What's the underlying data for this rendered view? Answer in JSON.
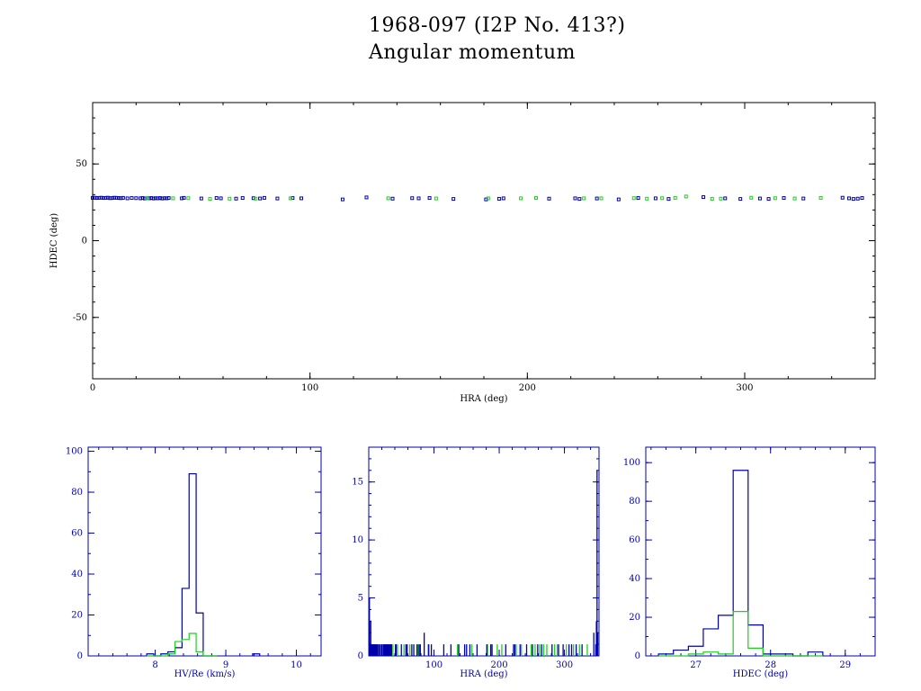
{
  "header": {
    "title": "1968-097 (I2P No. 413?)",
    "subtitle": "Angular momentum"
  },
  "colors": {
    "axis": "#000000",
    "primary": "#0000aa",
    "secondary": "#22cc22",
    "hist_axis": "#0000aa"
  },
  "chart_data": [
    {
      "type": "scatter",
      "xlabel": "HRA (deg)",
      "ylabel": "HDEC (deg)",
      "xlim": [
        0,
        360
      ],
      "ylim": [
        -90,
        90
      ],
      "xticks": [
        0,
        100,
        200,
        300
      ],
      "yticks": [
        -50,
        0,
        50
      ],
      "series": [
        {
          "color": "#0000aa",
          "x": [
            0,
            1,
            2,
            3,
            4,
            5,
            6,
            7,
            8,
            9,
            10,
            11,
            12,
            13,
            14,
            16,
            18,
            20,
            22,
            23,
            24,
            25,
            26,
            27,
            28,
            29,
            30,
            31,
            32,
            33,
            34,
            35,
            41,
            42,
            50,
            57,
            59,
            66,
            69,
            74,
            77,
            79,
            85,
            92,
            96,
            115,
            126,
            138,
            147,
            150,
            155,
            166,
            181,
            187,
            189,
            210,
            222,
            224,
            232,
            242,
            251,
            259,
            265,
            281,
            291,
            298,
            307,
            311,
            318,
            327,
            345,
            348,
            350,
            352,
            354
          ],
          "y": [
            27.9,
            28,
            27.8,
            27.9,
            28,
            27.8,
            27.9,
            28,
            27.7,
            27.8,
            28,
            27.9,
            27.8,
            27.7,
            27.9,
            27.6,
            27.8,
            27.7,
            27.6,
            27.8,
            27.5,
            27.7,
            27.6,
            27.8,
            27.5,
            27.7,
            27.6,
            27.8,
            27.5,
            27.7,
            27.6,
            27.8,
            27.6,
            27.9,
            27.5,
            27.8,
            27.6,
            27.4,
            27.8,
            27.7,
            27.5,
            27.9,
            27.5,
            27.8,
            27.6,
            26.9,
            28.2,
            27.4,
            27.7,
            27.6,
            27.8,
            27.2,
            26.9,
            27.3,
            27.6,
            27.4,
            27.6,
            27.2,
            27.5,
            26.9,
            27.8,
            27.6,
            27.2,
            28.4,
            27.6,
            27.2,
            27.5,
            27.2,
            27.8,
            27.5,
            28,
            27.6,
            27.2,
            27.4,
            27.8
          ]
        },
        {
          "color": "#22cc22",
          "x": [
            25,
            37,
            44,
            54,
            63,
            75,
            91,
            136,
            158,
            182,
            197,
            204,
            226,
            234,
            249,
            255,
            262,
            268,
            273,
            285,
            289,
            303,
            314,
            323,
            335
          ],
          "y": [
            27.6,
            27.6,
            27.7,
            27.2,
            27.4,
            27.4,
            27.6,
            27.6,
            27.5,
            27.6,
            27.6,
            27.8,
            27.6,
            27.6,
            27.7,
            27.4,
            27.7,
            27.9,
            28.8,
            27.3,
            27.4,
            28,
            27.7,
            27.5,
            27.9
          ]
        }
      ]
    },
    {
      "type": "histogram",
      "xlabel": "HV/Re (km/s)",
      "xlim": [
        7.05,
        10.35
      ],
      "ylim": [
        0,
        102
      ],
      "xticks": [
        8,
        9,
        10
      ],
      "yticks": [
        0,
        20,
        40,
        60,
        80,
        100
      ],
      "bin_edges": [
        7.88,
        7.98,
        8.08,
        8.18,
        8.28,
        8.38,
        8.48,
        8.58,
        8.68,
        8.78,
        8.88
      ],
      "series": [
        {
          "color": "#0000aa",
          "counts": [
            1,
            0,
            1,
            2,
            4,
            33,
            89,
            21,
            0,
            0
          ]
        },
        {
          "color": "#22cc22",
          "counts": [
            0,
            0,
            0,
            1,
            7,
            8,
            11,
            2,
            0,
            0
          ]
        }
      ],
      "extra_bins": [
        {
          "edges": [
            9.38,
            9.48
          ],
          "count": 1,
          "color": "#0000aa"
        }
      ]
    },
    {
      "type": "histogram",
      "xlabel": "HRA (deg)",
      "xlim": [
        0,
        353
      ],
      "ylim": [
        0,
        18
      ],
      "xticks": [
        100,
        200,
        300
      ],
      "yticks": [
        0,
        5,
        10,
        15
      ],
      "spikes": {
        "blue_x": [
          0.5,
          1,
          2,
          3,
          4,
          5,
          6,
          7,
          8,
          9,
          10,
          11,
          12,
          13,
          14,
          16,
          18,
          20,
          22,
          23,
          24,
          25,
          26,
          27,
          28,
          29,
          30,
          31,
          32,
          33,
          34,
          35,
          41,
          42,
          50,
          57,
          59,
          66,
          69,
          74,
          77,
          79,
          85,
          92,
          96,
          115,
          126,
          138,
          147,
          150,
          155,
          166,
          181,
          187,
          189,
          210,
          222,
          224,
          232,
          242,
          251,
          259,
          265,
          281,
          291,
          298,
          307,
          311,
          318,
          327,
          345,
          348,
          349,
          350,
          351
        ],
        "blue_h": [
          3,
          5,
          1,
          3,
          1,
          1,
          1,
          1,
          1,
          1,
          1,
          1,
          1,
          1,
          1,
          1,
          1,
          1,
          1,
          1,
          1,
          1,
          1,
          1,
          1,
          1,
          1,
          1,
          1,
          1,
          1,
          1,
          1,
          1,
          1,
          1,
          1,
          1,
          1,
          1,
          1,
          1,
          2,
          1,
          1,
          1,
          1,
          1,
          1,
          1,
          1,
          1,
          1,
          1,
          1,
          1,
          1,
          1,
          1,
          1,
          1,
          1,
          1,
          1,
          1,
          1,
          1,
          1,
          1,
          1,
          2,
          1,
          3,
          16,
          2
        ],
        "green_x": [
          25,
          37,
          44,
          54,
          63,
          75,
          91,
          136,
          158,
          182,
          197,
          204,
          226,
          234,
          249,
          255,
          262,
          268,
          273,
          285,
          289,
          303,
          314,
          323,
          335,
          349
        ],
        "green_h": [
          1,
          1,
          1,
          1,
          1,
          1,
          1,
          1,
          1,
          1,
          1,
          1,
          1,
          1,
          1,
          1,
          1,
          1,
          1,
          1,
          1,
          1,
          1,
          1,
          1,
          1
        ]
      }
    },
    {
      "type": "histogram",
      "xlabel": "HDEC (deg)",
      "xlim": [
        26.33,
        29.4
      ],
      "ylim": [
        0,
        108
      ],
      "xticks": [
        27,
        28,
        29
      ],
      "yticks": [
        0,
        20,
        40,
        60,
        80,
        100
      ],
      "bin_edges": [
        26.5,
        26.7,
        26.9,
        27.1,
        27.3,
        27.5,
        27.7,
        27.9,
        28.1,
        28.3,
        28.5,
        28.7
      ],
      "series": [
        {
          "color": "#0000aa",
          "counts": [
            1,
            3,
            5,
            14,
            21,
            96,
            16,
            1,
            1,
            0,
            2
          ]
        },
        {
          "color": "#22cc22",
          "counts": [
            0,
            0,
            1,
            2,
            1,
            23,
            4,
            0,
            0,
            0,
            0
          ]
        }
      ]
    }
  ]
}
